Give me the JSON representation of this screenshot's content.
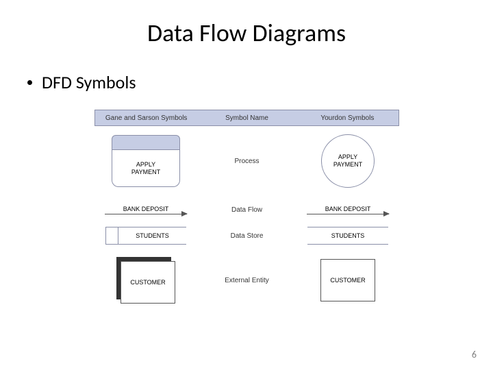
{
  "title": "Data Flow Diagrams",
  "bullet": "DFD Symbols",
  "header": {
    "left": "Gane and Sarson Symbols",
    "mid": "Symbol Name",
    "right": "Yourdon Symbols"
  },
  "rows": {
    "process": {
      "name": "Process",
      "label_line1": "APPLY",
      "label_line2": "PAYMENT"
    },
    "dataflow": {
      "name": "Data Flow",
      "label": "BANK DEPOSIT"
    },
    "datastore": {
      "name": "Data Store",
      "label": "STUDENTS"
    },
    "entity": {
      "name": "External Entity",
      "label": "CUSTOMER"
    }
  },
  "colors": {
    "band": "#c6cde4",
    "border": "#8a8fa8",
    "text": "#000000",
    "shadow": "#333333",
    "pagenum": "#808080"
  },
  "page_number": "6"
}
